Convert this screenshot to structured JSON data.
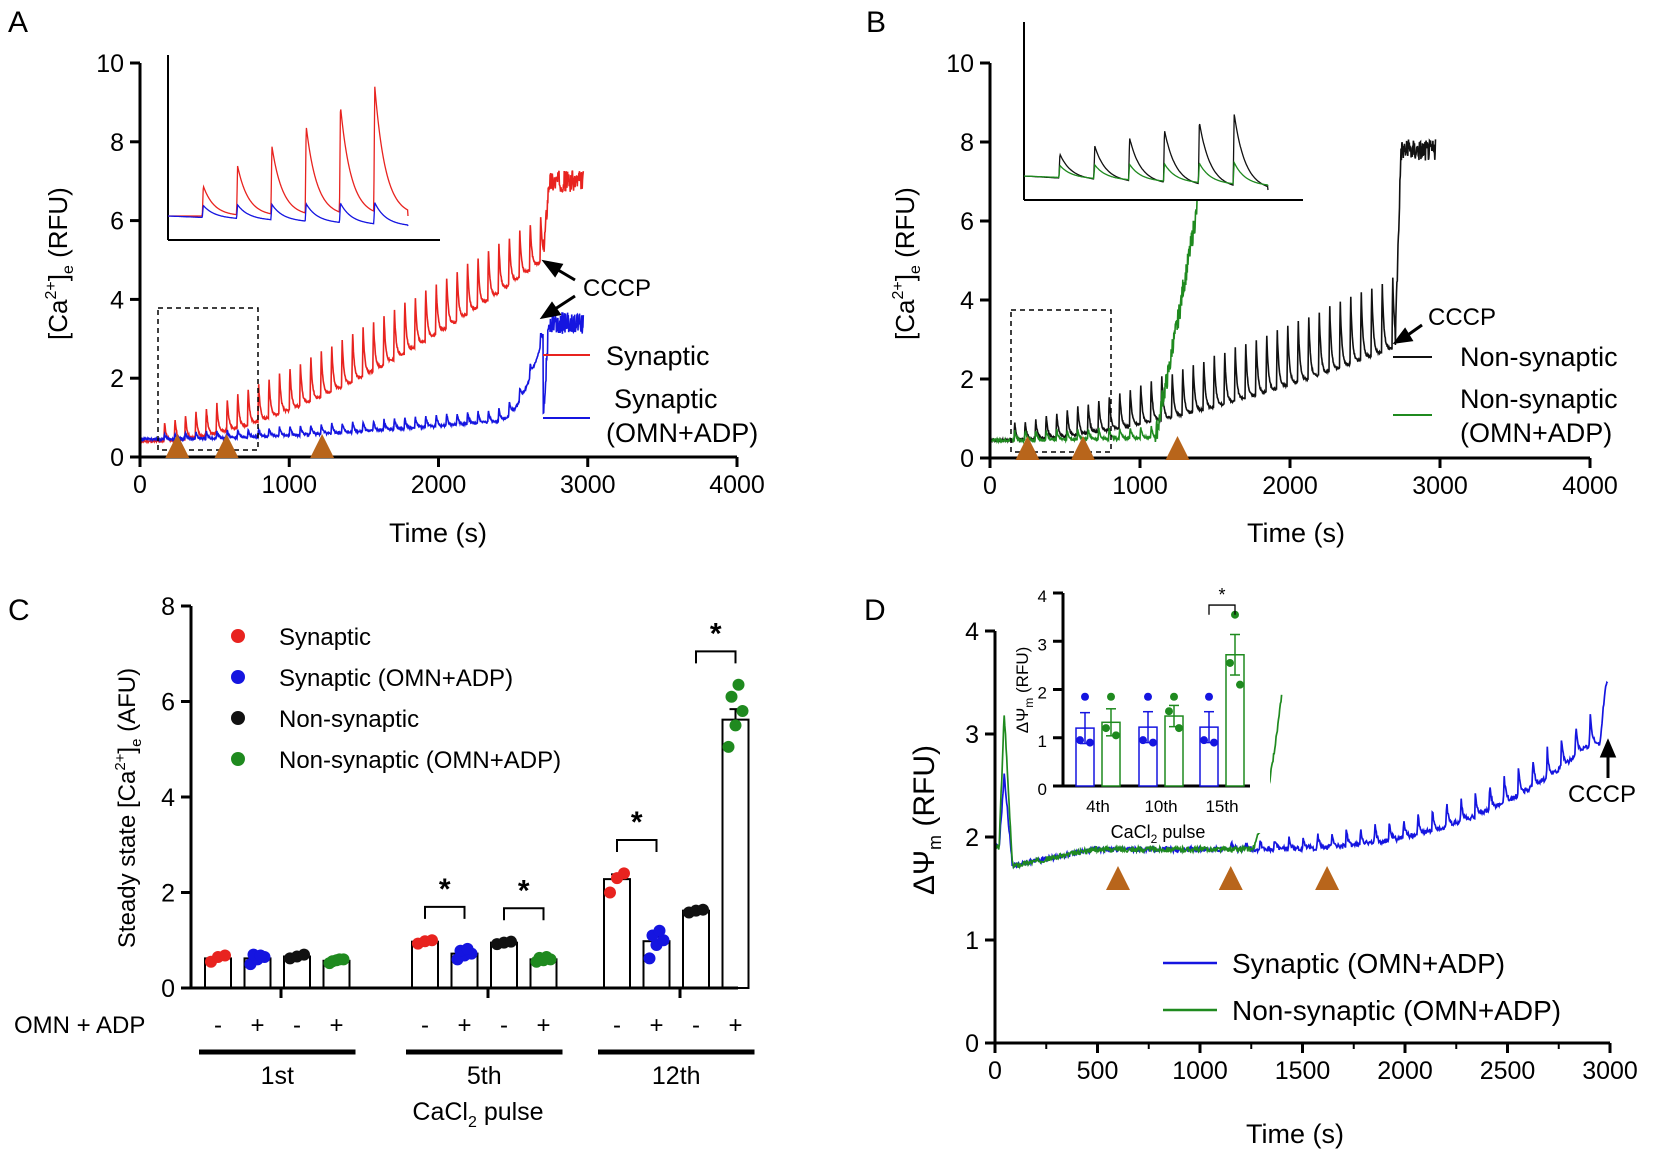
{
  "colors": {
    "red": "#e8231f",
    "blue": "#1515e0",
    "black": "#111111",
    "green": "#1f8a1f",
    "orange": "#b8651b"
  },
  "panels": {
    "A": {
      "letter": "A",
      "xlabel": "Time (s)",
      "ylabel_main": "[Ca",
      "ylabel_sup": "2+",
      "ylabel_close": "]",
      "ylabel_sub": "e",
      "ylabel_unit": " (RFU)",
      "xlim": [
        0,
        4000
      ],
      "ylim": [
        0,
        10
      ],
      "xticks": [
        "0",
        "1000",
        "2000",
        "3000",
        "4000"
      ],
      "yticks": [
        "0",
        "2",
        "4",
        "6",
        "8",
        "10"
      ],
      "annotation": "CCCP",
      "legend": [
        {
          "label": "Synaptic",
          "color": "#e8231f"
        },
        {
          "label": "Synaptic",
          "label2": "(OMN+ADP)",
          "color": "#1515e0"
        }
      ],
      "arrowheads_s": [
        250,
        580,
        1220
      ]
    },
    "B": {
      "letter": "B",
      "xlabel": "Time (s)",
      "ylabel_main": "[Ca",
      "ylabel_sup": "2+",
      "ylabel_close": "]",
      "ylabel_sub": "e",
      "ylabel_unit": " (RFU)",
      "xlim": [
        0,
        4000
      ],
      "ylim": [
        0,
        10
      ],
      "xticks": [
        "0",
        "1000",
        "2000",
        "3000",
        "4000"
      ],
      "yticks": [
        "0",
        "2",
        "4",
        "6",
        "8",
        "10"
      ],
      "annotation": "CCCP",
      "legend": [
        {
          "label": "Non-synaptic",
          "color": "#111111"
        },
        {
          "label": "Non-synaptic",
          "label2": "(OMN+ADP)",
          "color": "#1f8a1f"
        }
      ],
      "arrowheads_s": [
        250,
        620,
        1250
      ]
    },
    "C": {
      "letter": "C",
      "ylabel": "Steady state [Ca",
      "ylabel_sup": "2+",
      "ylabel_close": "]",
      "ylabel_sub": "e",
      "ylabel_unit": " (AFU)",
      "ylim": [
        0,
        8
      ],
      "yticks": [
        "0",
        "2",
        "4",
        "6",
        "8"
      ],
      "row_label": "OMN + ADP",
      "xlabel_main": "CaCl",
      "xlabel_sub": "2",
      "xlabel_rest": " pulse",
      "significance": "*",
      "legend": [
        {
          "label": "Synaptic",
          "color": "#e8231f"
        },
        {
          "label": "Synaptic (OMN+ADP)",
          "color": "#1515e0"
        },
        {
          "label": "Non-synaptic",
          "color": "#111111"
        },
        {
          "label": "Non-synaptic (OMN+ADP)",
          "color": "#1f8a1f"
        }
      ]
    },
    "D": {
      "letter": "D",
      "ylabel_main": "ΔΨ",
      "ylabel_sub": "m",
      "ylabel_unit": " (RFU)",
      "xlabel": "Time (s)",
      "xlim": [
        0,
        3000
      ],
      "ylim": [
        0,
        4
      ],
      "xticks": [
        "0",
        "500",
        "1000",
        "1500",
        "2000",
        "2500",
        "3000"
      ],
      "yticks": [
        "0",
        "1",
        "2",
        "3",
        "4"
      ],
      "annotation": "CCCP",
      "legend": [
        {
          "label": "Synaptic (OMN+ADP)",
          "color": "#1515e0"
        },
        {
          "label": "Non-synaptic (OMN+ADP)",
          "color": "#1f8a1f"
        }
      ],
      "arrowheads_s": [
        600,
        1150,
        1620
      ],
      "inset": {
        "ylabel_main": "ΔΨ",
        "ylabel_sub": "m",
        "ylabel_unit": " (RFU)",
        "ylim": [
          0,
          4
        ],
        "yticks": [
          "0",
          "1",
          "2",
          "3",
          "4"
        ],
        "xlabel_main": "CaCl",
        "xlabel_sub": "2",
        "xlabel_rest": " pulse",
        "significance": "*"
      }
    }
  },
  "chart_data": [
    {
      "type": "line",
      "panel": "A",
      "title": "",
      "xlabel": "Time (s)",
      "ylabel": "[Ca2+]e (RFU)",
      "xlim": [
        0,
        4000
      ],
      "ylim": [
        0,
        10
      ],
      "series": [
        {
          "name": "Synaptic",
          "color": "#e8231f",
          "x_end": 2970,
          "pulses": 36,
          "pulse_interval_s": 70,
          "baseline_start": 0.4,
          "baseline_end": 5.0,
          "peak_start": 0.9,
          "peak_end": 6.2,
          "post_cccp_level": 7.0,
          "cccp_time": 2700
        },
        {
          "name": "Synaptic (OMN+ADP)",
          "color": "#1515e0",
          "x_end": 2970,
          "pulses": 36,
          "pulse_interval_s": 70,
          "baseline_start": 0.45,
          "baseline_end": 1.0,
          "peak_start": 0.6,
          "peak_end": 1.3,
          "rise_start": 2400,
          "post_cccp_level": 3.4,
          "cccp_time": 2700
        }
      ],
      "arrowheads_s": [
        250,
        580,
        1220
      ],
      "annotations": [
        {
          "text": "CCCP",
          "x": 2700
        }
      ]
    },
    {
      "type": "line",
      "panel": "B",
      "title": "",
      "xlabel": "Time (s)",
      "ylabel": "[Ca2+]e (RFU)",
      "xlim": [
        0,
        4000
      ],
      "ylim": [
        0,
        10
      ],
      "series": [
        {
          "name": "Non-synaptic",
          "color": "#111111",
          "x_end": 2970,
          "pulses": 36,
          "pulse_interval_s": 70,
          "baseline_start": 0.45,
          "baseline_end": 2.8,
          "peak_start": 0.9,
          "peak_end": 4.7,
          "post_cccp_level": 7.8,
          "cccp_time": 2700
        },
        {
          "name": "Non-synaptic (OMN+ADP)",
          "color": "#1f8a1f",
          "x_end": 1380,
          "pulses": 12,
          "pulse_interval_s": 70,
          "baseline_start": 0.45,
          "baseline_end": 0.55,
          "peak_start": 0.7,
          "peak_end": 0.85,
          "release_start": 1100,
          "release_level": 6.3
        }
      ],
      "arrowheads_s": [
        250,
        620,
        1250
      ],
      "annotations": [
        {
          "text": "CCCP",
          "x": 2700
        }
      ]
    },
    {
      "type": "bar",
      "panel": "C",
      "xlabel": "CaCl2 pulse",
      "ylabel": "Steady state [Ca2+]e (AFU)",
      "ylim": [
        0,
        8
      ],
      "categories": [
        "1st",
        "5th",
        "12th"
      ],
      "conditions": [
        "-",
        "+",
        "-",
        "+"
      ],
      "series": [
        {
          "name": "Synaptic",
          "color": "#e8231f",
          "values": [
            0.62,
            0.97,
            2.28
          ],
          "points": [
            [
              0.55,
              0.65,
              0.68
            ],
            [
              0.93,
              0.98,
              1.0
            ],
            [
              2.0,
              2.3,
              2.4
            ]
          ]
        },
        {
          "name": "Synaptic (OMN+ADP)",
          "color": "#1515e0",
          "values": [
            0.62,
            0.72,
            0.98
          ],
          "points": [
            [
              0.5,
              0.6,
              0.65,
              0.7,
              0.68
            ],
            [
              0.6,
              0.68,
              0.72,
              0.78,
              0.82
            ],
            [
              0.62,
              0.9,
              1.0,
              1.1,
              1.2
            ]
          ]
        },
        {
          "name": "Non-synaptic",
          "color": "#111111",
          "values": [
            0.66,
            0.95,
            1.62
          ],
          "points": [
            [
              0.62,
              0.66,
              0.7
            ],
            [
              0.92,
              0.95,
              0.97
            ],
            [
              1.58,
              1.62,
              1.64
            ]
          ]
        },
        {
          "name": "Non-synaptic (OMN+ADP)",
          "color": "#1f8a1f",
          "values": [
            0.57,
            0.6,
            5.62
          ],
          "points": [
            [
              0.52,
              0.58,
              0.6,
              0.56,
              0.6
            ],
            [
              0.55,
              0.58,
              0.6,
              0.63,
              0.65
            ],
            [
              5.05,
              5.5,
              5.8,
              6.1,
              6.35
            ]
          ]
        }
      ],
      "errors": [
        [
          0.03,
          0.05,
          0.1
        ],
        [
          0.04,
          0.04,
          0.1
        ],
        [
          0.02,
          0.02,
          0.02
        ],
        [
          0.02,
          0.02,
          0.22
        ]
      ],
      "significance_pairs": [
        [
          "5th",
          0,
          1
        ],
        [
          "5th",
          2,
          3
        ],
        [
          "12th",
          0,
          1
        ],
        [
          "12th",
          2,
          3
        ]
      ]
    },
    {
      "type": "line",
      "panel": "D",
      "xlabel": "Time (s)",
      "ylabel": "ΔΨm (RFU)",
      "xlim": [
        0,
        3000
      ],
      "ylim": [
        0,
        4
      ],
      "series": [
        {
          "name": "Synaptic (OMN+ADP)",
          "color": "#1515e0",
          "x_end": 2990,
          "baseline_start": 1.9,
          "initial_peak": 2.6,
          "dip_level": 1.72,
          "plateau": 1.88,
          "late_level": 2.9,
          "post_cccp": 3.5,
          "pulse_start": 1150,
          "pulse_interval_s": 70
        },
        {
          "name": "Non-synaptic (OMN+ADP)",
          "color": "#1f8a1f",
          "x_end": 1400,
          "baseline_start": 1.9,
          "initial_peak": 3.2,
          "dip_level": 1.72,
          "plateau": 1.88,
          "release_start": 1250,
          "release_level": 3.4
        }
      ],
      "arrowheads_s": [
        600,
        1150,
        1620
      ],
      "annotations": [
        {
          "text": "CCCP",
          "x": 2990
        }
      ]
    },
    {
      "type": "bar",
      "panel": "D-inset",
      "xlabel": "CaCl2 pulse",
      "ylabel": "ΔΨm (RFU)",
      "ylim": [
        0,
        4
      ],
      "categories": [
        "4th",
        "10th",
        "15th"
      ],
      "series": [
        {
          "name": "Synaptic (OMN+ADP)",
          "color": "#1515e0",
          "values": [
            1.2,
            1.22,
            1.22
          ],
          "errors": [
            0.32,
            0.32,
            0.32
          ],
          "points": [
            [
              1.85,
              0.95,
              0.9
            ],
            [
              1.85,
              0.95,
              0.9
            ],
            [
              1.85,
              0.95,
              0.9
            ]
          ]
        },
        {
          "name": "Non-synaptic (OMN+ADP)",
          "color": "#1f8a1f",
          "values": [
            1.32,
            1.45,
            2.72
          ],
          "errors": [
            0.28,
            0.22,
            0.42
          ],
          "points": [
            [
              1.85,
              1.2,
              1.05
            ],
            [
              1.85,
              1.55,
              1.2
            ],
            [
              3.55,
              2.55,
              2.1
            ]
          ]
        }
      ],
      "significance_pairs": [
        [
          "15th",
          0,
          1
        ]
      ]
    }
  ]
}
